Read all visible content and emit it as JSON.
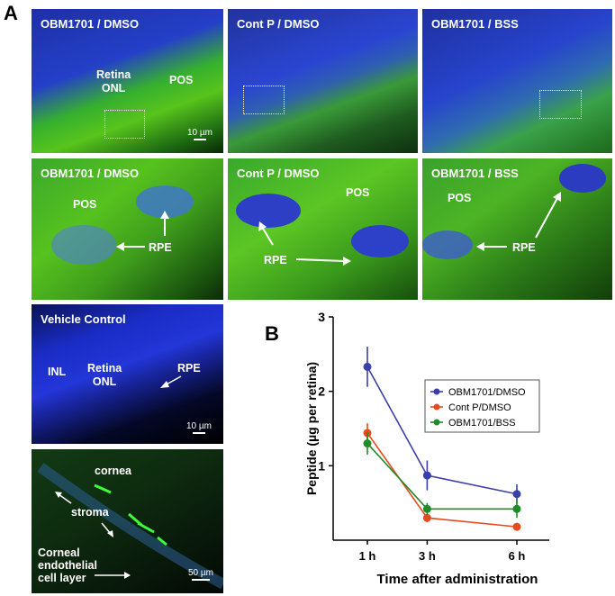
{
  "figure": {
    "label_a": "A",
    "label_b": "B"
  },
  "micrographs": {
    "r1p1": {
      "title": "OBM1701 / DMSO",
      "retina_onl": "Retina\nONL",
      "pos": "POS",
      "scale": "10 µm"
    },
    "r1p2": {
      "title": "Cont P / DMSO"
    },
    "r1p3": {
      "title": "OBM1701 / BSS"
    },
    "r2p1": {
      "title": "OBM1701 / DMSO",
      "pos": "POS",
      "rpe": "RPE"
    },
    "r2p2": {
      "title": "Cont P / DMSO",
      "pos": "POS",
      "rpe": "RPE"
    },
    "r2p3": {
      "title": "OBM1701 / BSS",
      "pos": "POS",
      "rpe": "RPE"
    },
    "vehicle": {
      "title": "Vehicle Control",
      "inl": "INL",
      "retina_onl": "Retina\nONL",
      "rpe": "RPE",
      "scale": "10 µm"
    },
    "cornea": {
      "cornea": "cornea",
      "stroma": "stroma",
      "endothelial": "Corneal\nendothelial\ncell layer",
      "scale": "50 µm"
    }
  },
  "chart_data": {
    "type": "line",
    "x": [
      "1 h",
      "3 h",
      "6 h"
    ],
    "x_hours": [
      1,
      3,
      6
    ],
    "xlabel": "Time after administration",
    "ylabel": "Peptide (µg per retina)",
    "ylim": [
      0,
      3
    ],
    "yticks": [
      1,
      2,
      3
    ],
    "legend_position": "right",
    "series": [
      {
        "name": "OBM1701/DMSO",
        "color": "#3b3fa8",
        "values": [
          2.33,
          0.87,
          0.62
        ],
        "err": [
          0.27,
          0.2,
          0.13
        ]
      },
      {
        "name": "Cont P/DMSO",
        "color": "#e8491d",
        "values": [
          1.44,
          0.3,
          0.18
        ],
        "err": [
          0.13,
          0.06,
          0.05
        ]
      },
      {
        "name": "OBM1701/BSS",
        "color": "#1e8c28",
        "values": [
          1.3,
          0.42,
          0.42
        ],
        "err": [
          0.15,
          0.08,
          0.12
        ]
      }
    ]
  }
}
